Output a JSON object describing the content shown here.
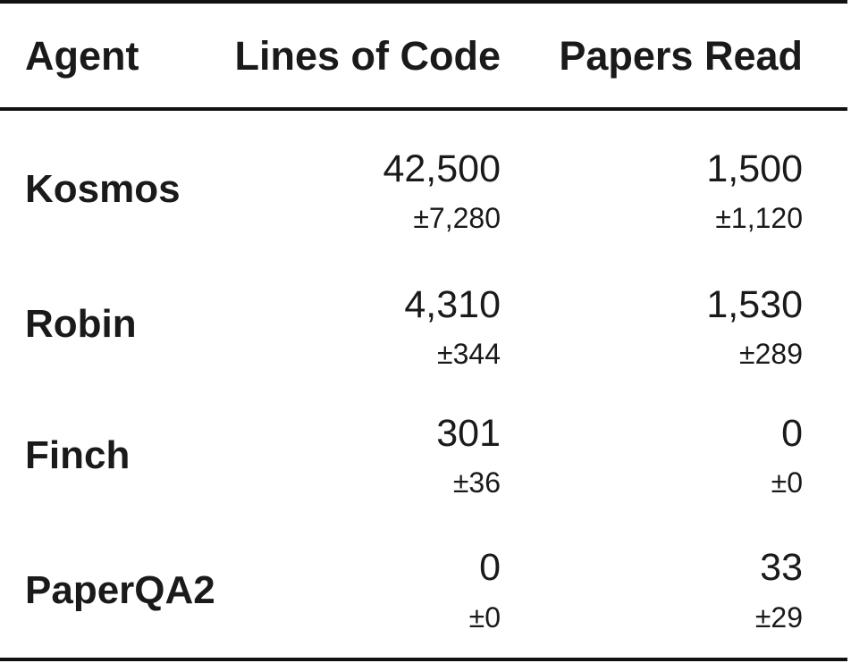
{
  "header": {
    "agent": "Agent",
    "lines_of_code": "Lines of Code",
    "papers_read": "Papers Read"
  },
  "rows": [
    {
      "agent": "Kosmos",
      "loc": "42,500",
      "loc_err": "±7,280",
      "papers": "1,500",
      "papers_err": "±1,120"
    },
    {
      "agent": "Robin",
      "loc": "4,310",
      "loc_err": "±344",
      "papers": "1,530",
      "papers_err": "±289"
    },
    {
      "agent": "Finch",
      "loc": "301",
      "loc_err": "±36",
      "papers": "0",
      "papers_err": "±0"
    },
    {
      "agent": "PaperQA2",
      "loc": "0",
      "loc_err": "±0",
      "papers": "33",
      "papers_err": "±29"
    }
  ]
}
